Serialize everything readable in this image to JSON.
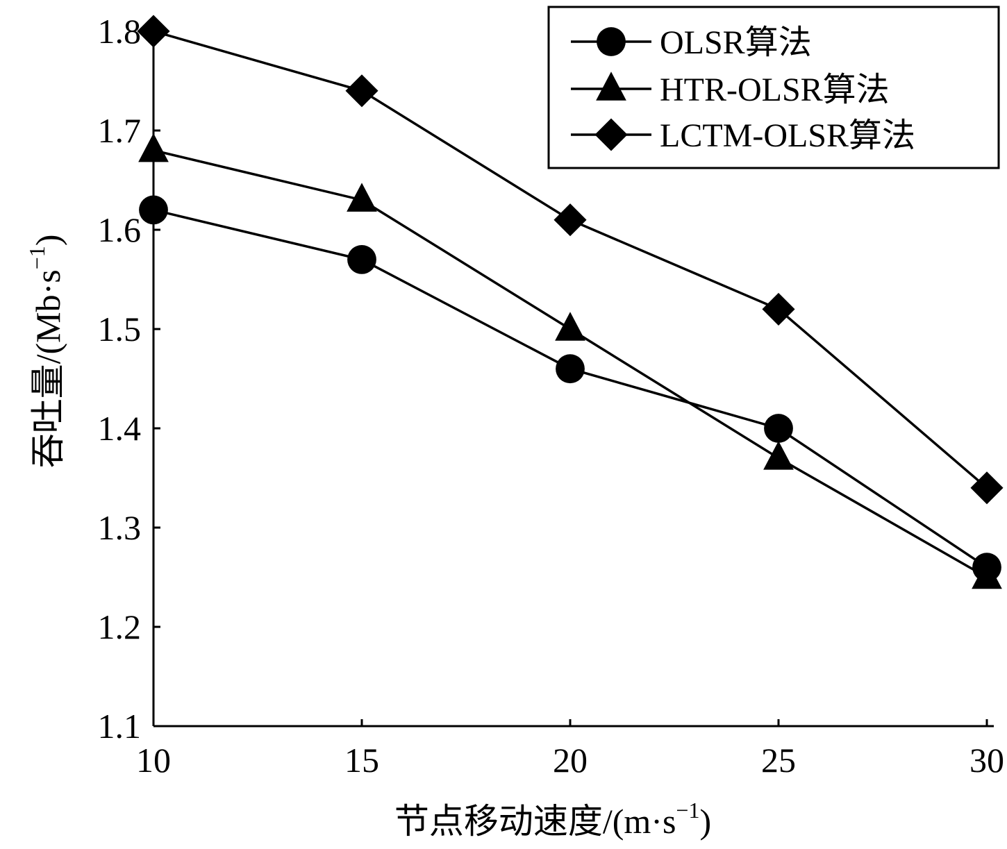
{
  "chart_data": {
    "type": "line",
    "xlabel": "节点移动速度/(m·s",
    "xlabel_sup": "−1",
    "xlabel_close": ")",
    "ylabel": "吞吐量/(Mb·s",
    "ylabel_sup": "−1",
    "ylabel_close": ")",
    "xlim": [
      10,
      30
    ],
    "ylim": [
      1.1,
      1.8
    ],
    "xticks": [
      10,
      15,
      20,
      25,
      30
    ],
    "xtick_labels": [
      "10",
      "15",
      "20",
      "25",
      "30"
    ],
    "yticks": [
      1.1,
      1.2,
      1.3,
      1.4,
      1.5,
      1.6,
      1.7,
      1.8
    ],
    "ytick_labels": [
      "1.1",
      "1.2",
      "1.3",
      "1.4",
      "1.5",
      "1.6",
      "1.7",
      "1.8"
    ],
    "x": [
      10,
      15,
      20,
      25,
      30
    ],
    "series": [
      {
        "name": "OLSR算法",
        "marker": "circle",
        "values": [
          1.62,
          1.57,
          1.46,
          1.4,
          1.26
        ]
      },
      {
        "name": "HTR-OLSR算法",
        "marker": "triangle",
        "values": [
          1.68,
          1.63,
          1.5,
          1.37,
          1.25
        ]
      },
      {
        "name": "LCTM-OLSR算法",
        "marker": "diamond",
        "values": [
          1.8,
          1.74,
          1.61,
          1.52,
          1.34
        ]
      }
    ],
    "legend_position": "top-right",
    "grid": false,
    "line_color": "#000000"
  }
}
